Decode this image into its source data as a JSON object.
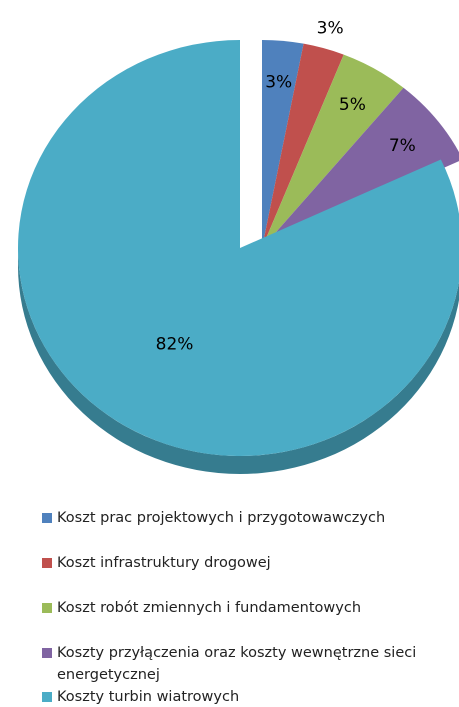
{
  "chart_data": {
    "type": "pie",
    "categories": [
      "Koszt prac projektowych  i przygotowawczych",
      "Koszt infrastruktury drogowej",
      "Koszt robót zmiennych i fundamentowych",
      "Koszty przyłączenia oraz koszty  wewnętrzne sieci energetycznej",
      "Koszty turbin wiatrowych"
    ],
    "values": [
      3,
      3,
      5,
      7,
      82
    ],
    "value_labels": [
      "3%",
      "3%",
      "5%",
      "7%",
      "82%"
    ],
    "colors": [
      "#4f81bd",
      "#c0504d",
      "#9bbb59",
      "#8064a2",
      "#4bacc6"
    ],
    "legend": "bottom"
  }
}
